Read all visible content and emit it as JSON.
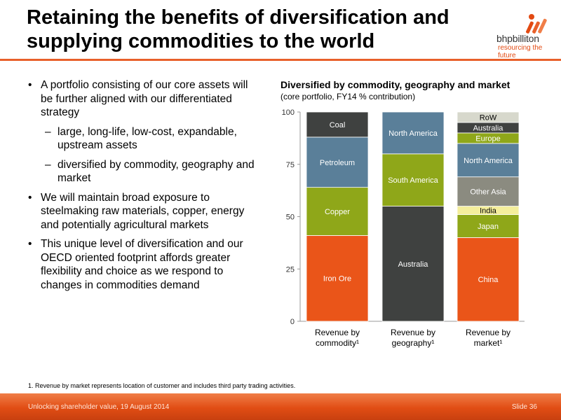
{
  "slide": {
    "title": "Retaining the benefits of diversification and supplying commodities to the world",
    "logo": {
      "wordmark": "bhpbilliton",
      "tagline": "resourcing the future"
    },
    "bullets": [
      "A portfolio consisting of our core assets will be further aligned with our differentiated strategy",
      "large, long-life, low-cost, expandable, upstream assets",
      "diversified by commodity, geography and market",
      "We will maintain broad exposure to steelmaking raw materials, copper, energy and potentially agricultural markets",
      "This unique level of diversification and our OECD oriented footprint affords greater flexibility and choice as we respond to changes in commodities demand"
    ],
    "footnote": "1.  Revenue by market represents location of customer and includes third party trading activities.",
    "footer_left": "Unlocking shareholder value, 19 August 2014",
    "footer_right": "Slide 36"
  },
  "colors": {
    "accent": "#e8602a",
    "orange": "#ea5519",
    "green": "#8fa719",
    "blue": "#5a7f99",
    "dark": "#3f4140",
    "grey": "#8b8b80",
    "light": "#d7d8cc",
    "yellow": "#f4ee9c"
  },
  "chart_data": {
    "type": "bar",
    "stacked": true,
    "title": "Diversified by commodity, geography and market",
    "subtitle": "(core portfolio, FY14 % contribution)",
    "categories": [
      "Revenue by commodity¹",
      "Revenue by geography¹",
      "Revenue by market¹"
    ],
    "ylim": [
      0,
      100
    ],
    "yticks": [
      0,
      25,
      50,
      75,
      100
    ],
    "grid": false,
    "bars": [
      {
        "segments": [
          {
            "name": "Iron Ore",
            "value": 41,
            "color": "#ea5519"
          },
          {
            "name": "Copper",
            "value": 23,
            "color": "#8fa719"
          },
          {
            "name": "Petroleum",
            "value": 24,
            "color": "#5a7f99"
          },
          {
            "name": "Coal",
            "value": 12,
            "color": "#3f4140"
          }
        ]
      },
      {
        "segments": [
          {
            "name": "Australia",
            "value": 55,
            "color": "#3f4140"
          },
          {
            "name": "South America",
            "value": 25,
            "color": "#8fa719"
          },
          {
            "name": "North America",
            "value": 20,
            "color": "#5a7f99"
          }
        ]
      },
      {
        "segments": [
          {
            "name": "China",
            "value": 40,
            "color": "#ea5519"
          },
          {
            "name": "Japan",
            "value": 11,
            "color": "#8fa719"
          },
          {
            "name": "India",
            "value": 4,
            "color": "#f4ee9c"
          },
          {
            "name": "Other Asia",
            "value": 14,
            "color": "#8b8b80"
          },
          {
            "name": "North America",
            "value": 16,
            "color": "#5a7f99"
          },
          {
            "name": "Europe",
            "value": 5,
            "color": "#8fa719"
          },
          {
            "name": "Australia",
            "value": 5,
            "color": "#3f4140"
          },
          {
            "name": "RoW",
            "value": 5,
            "color": "#d7d8cc"
          }
        ]
      }
    ]
  }
}
